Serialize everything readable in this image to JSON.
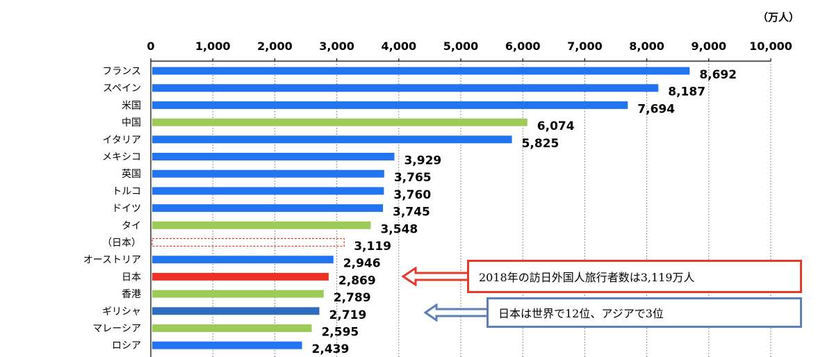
{
  "unit_label": "（万人）",
  "callouts": {
    "red": "2018年の訪日外国人旅行者数は3,119万人",
    "blue": "日本は世界で12位、アジアで3位"
  },
  "colors": {
    "europe_americas": "#2374f0",
    "asia": "#9ccb58",
    "japan": "#ee3124",
    "greece": "#2f6cc0",
    "japan_outbound": "#e43a2a",
    "callout_red": "#e43a2a",
    "callout_blue": "#5b7fb6"
  },
  "chart_data": {
    "type": "bar",
    "orientation": "horizontal",
    "xlim": [
      0,
      10000
    ],
    "x_ticks": [
      "0",
      "1,000",
      "2,000",
      "3,000",
      "4,000",
      "5,000",
      "6,000",
      "7,000",
      "8,000",
      "9,000",
      "10,000"
    ],
    "grid": "vertical dotted",
    "categories": [
      "フランス",
      "スペイン",
      "米国",
      "中国",
      "イタリア",
      "メキシコ",
      "英国",
      "トルコ",
      "ドイツ",
      "タイ",
      "（日本）",
      "オーストリア",
      "日本",
      "香港",
      "ギリシャ",
      "マレーシア",
      "ロシア"
    ],
    "values": [
      8692,
      8187,
      7694,
      6074,
      5825,
      3929,
      3765,
      3760,
      3745,
      3548,
      3119,
      2946,
      2869,
      2789,
      2719,
      2595,
      2439
    ],
    "value_labels": [
      "8,692",
      "8,187",
      "7,694",
      "6,074",
      "5,825",
      "3,929",
      "3,765",
      "3,760",
      "3,745",
      "3,548",
      "3,119",
      "2,946",
      "2,869",
      "2,789",
      "2,719",
      "2,595",
      "2,439"
    ],
    "bar_styles": [
      "europe_americas",
      "europe_americas",
      "europe_americas",
      "asia",
      "europe_americas",
      "europe_americas",
      "europe_americas",
      "europe_americas",
      "europe_americas",
      "asia",
      "japan_outbound",
      "europe_americas",
      "japan",
      "asia",
      "greece",
      "asia",
      "europe_americas"
    ]
  }
}
